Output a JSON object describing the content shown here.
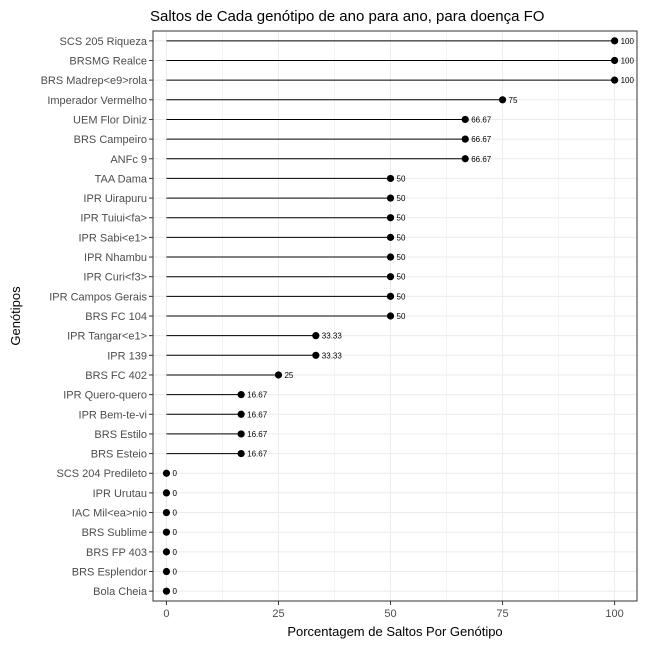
{
  "chart_data": {
    "type": "lollipop",
    "title": "Saltos de Cada genótipo de ano para ano, para doença FO",
    "xlabel": "Porcentagem de Saltos Por Genótipo",
    "ylabel": "Genótipos",
    "xlim": [
      -3,
      105
    ],
    "xticks": [
      0,
      25,
      50,
      75,
      100
    ],
    "grid": true,
    "legend": "none",
    "colors": {
      "line": "#000000",
      "point": "#000000",
      "grid_major": "#ebebeb",
      "grid_minor": "#f4f4f4",
      "border": "#333333"
    },
    "categories": [
      "SCS 205 Riqueza",
      "BRSMG Realce",
      "BRS Madrep<e9>rola",
      "Imperador Vermelho",
      "UEM Flor Diniz",
      "BRS Campeiro",
      "ANFc 9",
      "TAA Dama",
      "IPR Uirapuru",
      "IPR Tuiui<fa>",
      "IPR Sabi<e1>",
      "IPR Nhambu",
      "IPR Curi<f3>",
      "IPR Campos Gerais",
      "BRS FC 104",
      "IPR Tangar<e1>",
      "IPR 139",
      "BRS FC 402",
      "IPR Quero-quero",
      "IPR Bem-te-vi",
      "BRS Estilo",
      "BRS Esteio",
      "SCS 204 Predileto",
      "IPR Urutau",
      "IAC Mil<ea>nio",
      "BRS Sublime",
      "BRS FP 403",
      "BRS Esplendor",
      "Bola Cheia"
    ],
    "values": [
      100,
      100,
      100,
      75,
      66.67,
      66.67,
      66.67,
      50,
      50,
      50,
      50,
      50,
      50,
      50,
      50,
      33.33,
      33.33,
      25,
      16.67,
      16.67,
      16.67,
      16.67,
      0,
      0,
      0,
      0,
      0,
      0,
      0
    ],
    "labels": [
      "100",
      "100",
      "100",
      "75",
      "66.67",
      "66.67",
      "66.67",
      "50",
      "50",
      "50",
      "50",
      "50",
      "50",
      "50",
      "50",
      "33.33",
      "33.33",
      "25",
      "16.67",
      "16.67",
      "16.67",
      "16.67",
      "0",
      "0",
      "0",
      "0",
      "0",
      "0",
      "0"
    ]
  }
}
